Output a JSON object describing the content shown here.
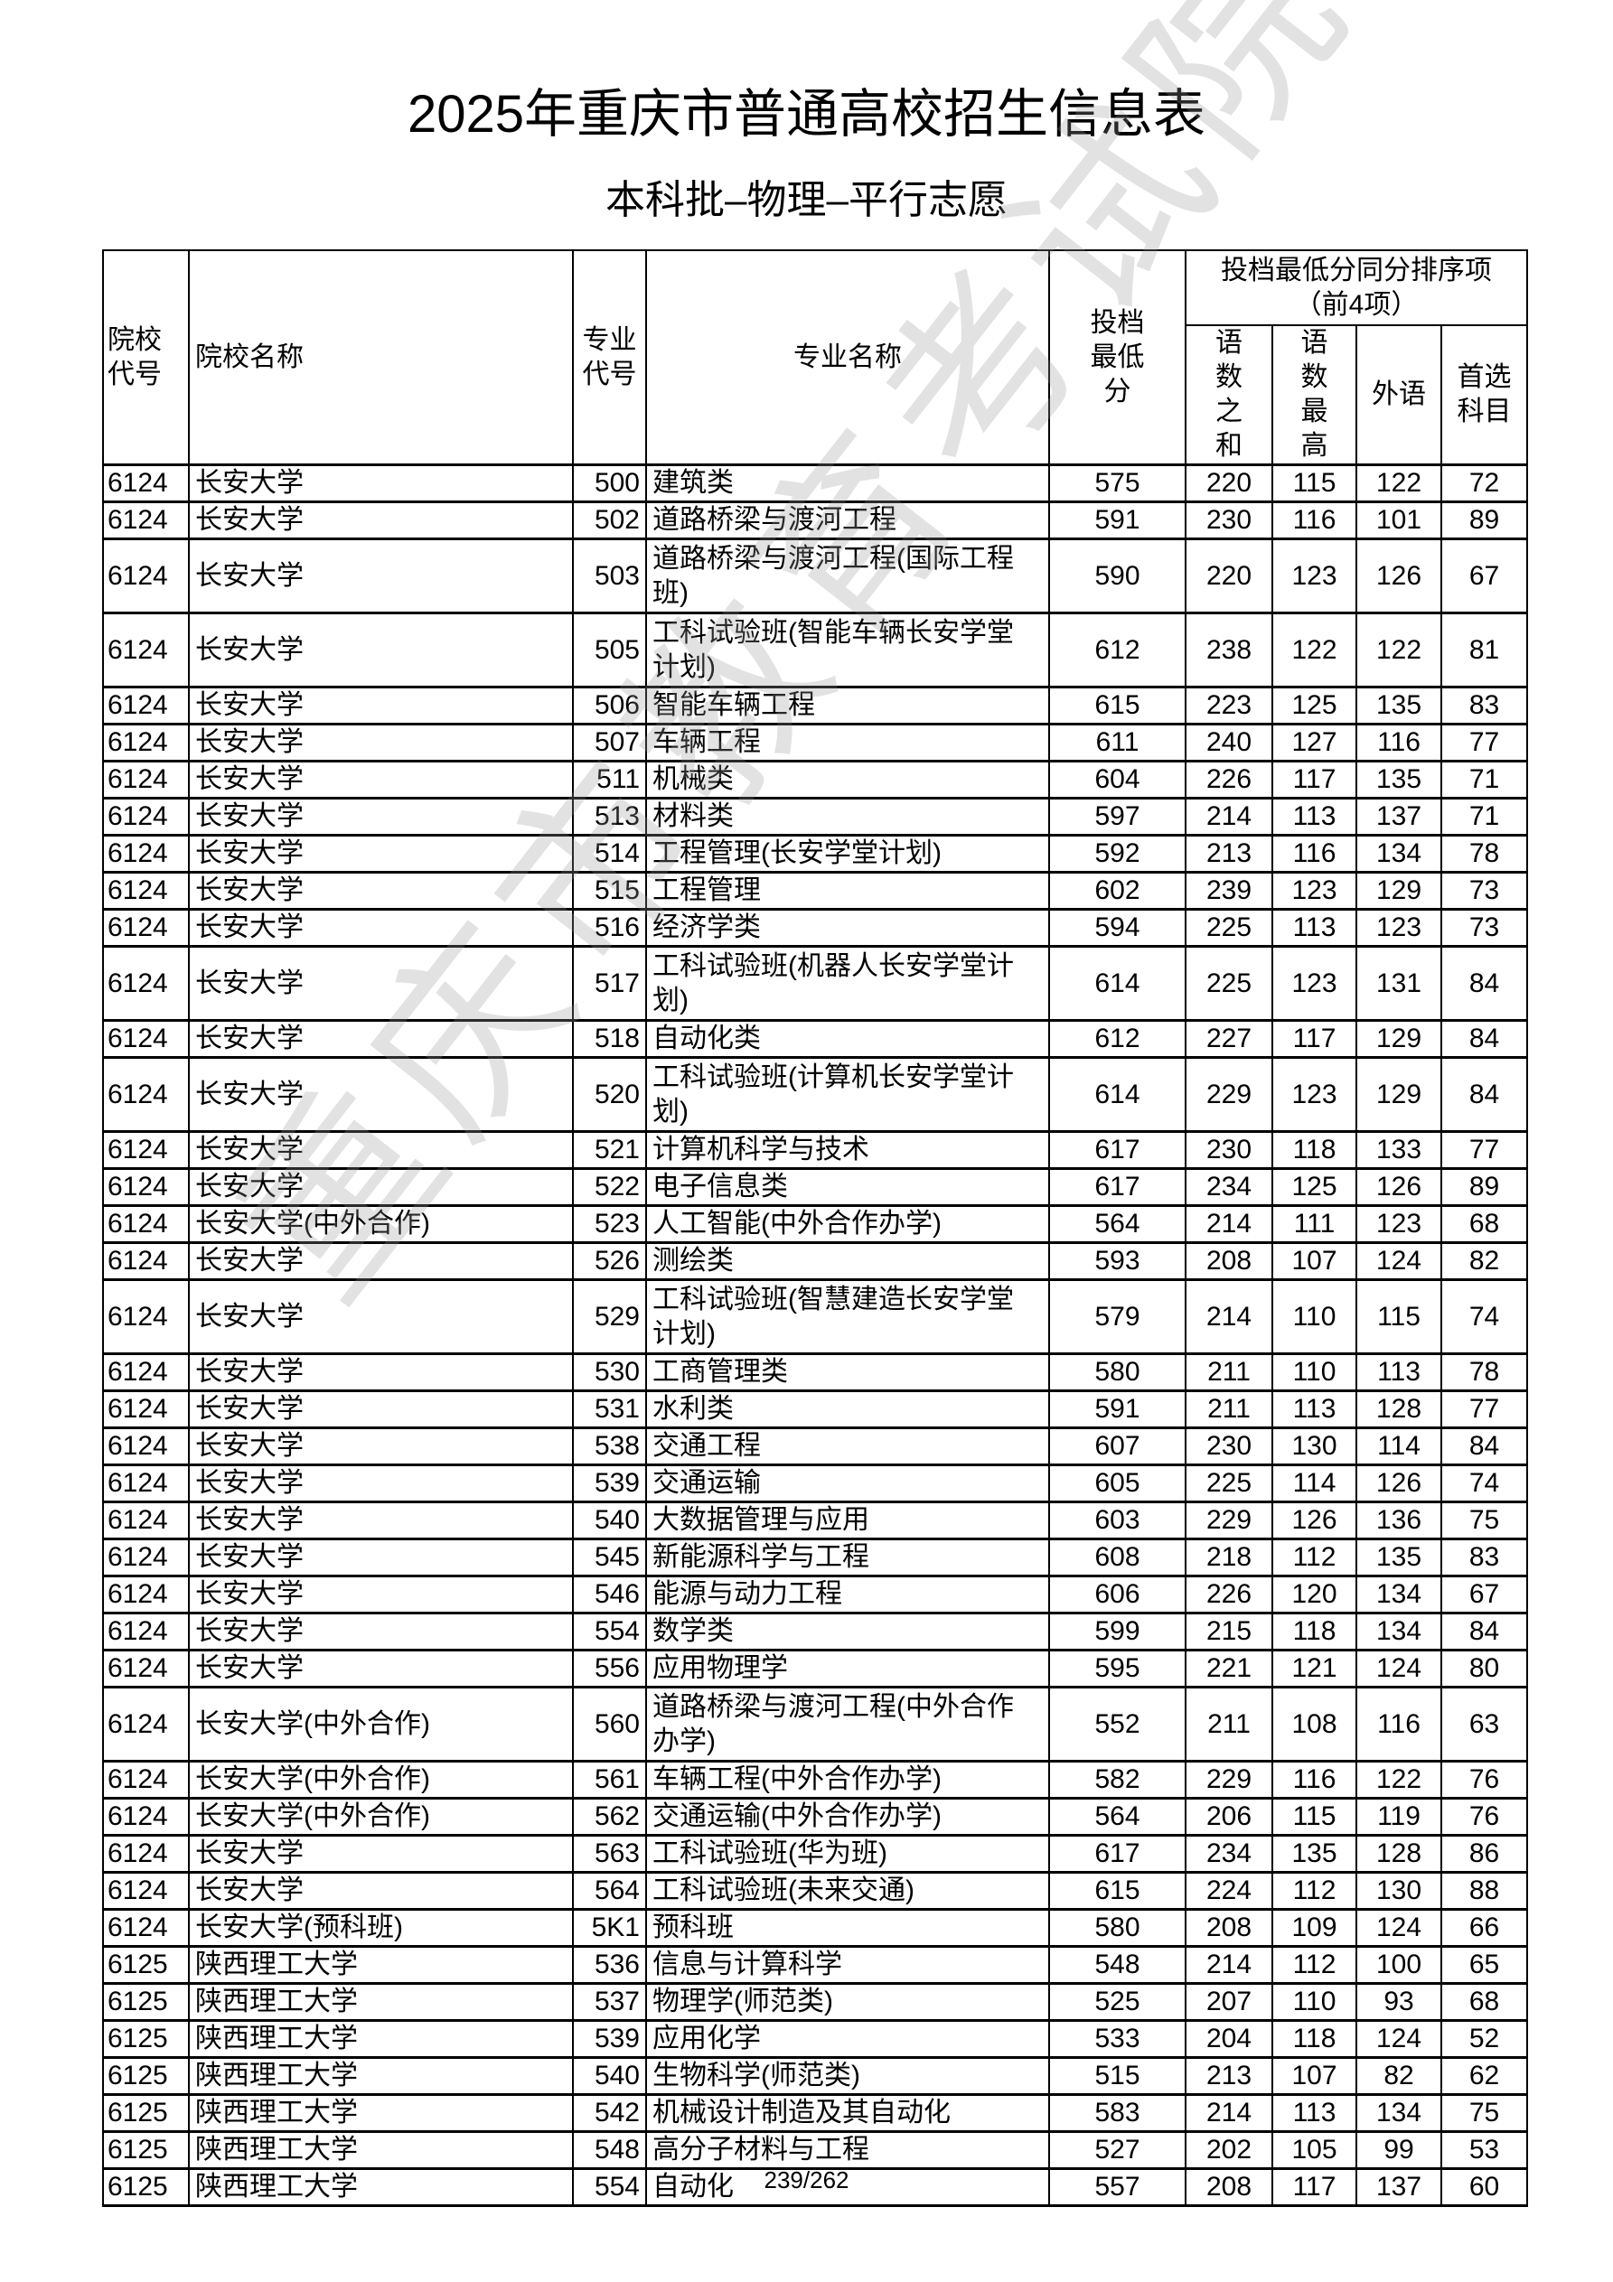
{
  "title": "2025年重庆市普通高校招生信息表",
  "subtitle": "本科批–物理–平行志愿",
  "watermark": "重庆市教育考试院",
  "headers": {
    "school_code": "院校代号",
    "school_name": "院校名称",
    "major_code": "专业代号",
    "major_name": "专业名称",
    "min_score": "投档最低分",
    "tiebreak_group": "投档最低分同分排序项（前4项）",
    "chinese_math_sum": "语数之和",
    "chinese_math_max": "语数最高",
    "foreign_lang": "外语",
    "first_subject": "首选科目"
  },
  "rows": [
    [
      "6124",
      "长安大学",
      "500",
      "建筑类",
      "575",
      "220",
      "115",
      "122",
      "72"
    ],
    [
      "6124",
      "长安大学",
      "502",
      "道路桥梁与渡河工程",
      "591",
      "230",
      "116",
      "101",
      "89"
    ],
    [
      "6124",
      "长安大学",
      "503",
      "道路桥梁与渡河工程(国际工程班)",
      "590",
      "220",
      "123",
      "126",
      "67"
    ],
    [
      "6124",
      "长安大学",
      "505",
      "工科试验班(智能车辆长安学堂计划)",
      "612",
      "238",
      "122",
      "122",
      "81"
    ],
    [
      "6124",
      "长安大学",
      "506",
      "智能车辆工程",
      "615",
      "223",
      "125",
      "135",
      "83"
    ],
    [
      "6124",
      "长安大学",
      "507",
      "车辆工程",
      "611",
      "240",
      "127",
      "116",
      "77"
    ],
    [
      "6124",
      "长安大学",
      "511",
      "机械类",
      "604",
      "226",
      "117",
      "135",
      "71"
    ],
    [
      "6124",
      "长安大学",
      "513",
      "材料类",
      "597",
      "214",
      "113",
      "137",
      "71"
    ],
    [
      "6124",
      "长安大学",
      "514",
      "工程管理(长安学堂计划)",
      "592",
      "213",
      "116",
      "134",
      "78"
    ],
    [
      "6124",
      "长安大学",
      "515",
      "工程管理",
      "602",
      "239",
      "123",
      "129",
      "73"
    ],
    [
      "6124",
      "长安大学",
      "516",
      "经济学类",
      "594",
      "225",
      "113",
      "123",
      "73"
    ],
    [
      "6124",
      "长安大学",
      "517",
      "工科试验班(机器人长安学堂计划)",
      "614",
      "225",
      "123",
      "131",
      "84"
    ],
    [
      "6124",
      "长安大学",
      "518",
      "自动化类",
      "612",
      "227",
      "117",
      "129",
      "84"
    ],
    [
      "6124",
      "长安大学",
      "520",
      "工科试验班(计算机长安学堂计划)",
      "614",
      "229",
      "123",
      "129",
      "84"
    ],
    [
      "6124",
      "长安大学",
      "521",
      "计算机科学与技术",
      "617",
      "230",
      "118",
      "133",
      "77"
    ],
    [
      "6124",
      "长安大学",
      "522",
      "电子信息类",
      "617",
      "234",
      "125",
      "126",
      "89"
    ],
    [
      "6124",
      "长安大学(中外合作)",
      "523",
      "人工智能(中外合作办学)",
      "564",
      "214",
      "111",
      "123",
      "68"
    ],
    [
      "6124",
      "长安大学",
      "526",
      "测绘类",
      "593",
      "208",
      "107",
      "124",
      "82"
    ],
    [
      "6124",
      "长安大学",
      "529",
      "工科试验班(智慧建造长安学堂计划)",
      "579",
      "214",
      "110",
      "115",
      "74"
    ],
    [
      "6124",
      "长安大学",
      "530",
      "工商管理类",
      "580",
      "211",
      "110",
      "113",
      "78"
    ],
    [
      "6124",
      "长安大学",
      "531",
      "水利类",
      "591",
      "211",
      "113",
      "128",
      "77"
    ],
    [
      "6124",
      "长安大学",
      "538",
      "交通工程",
      "607",
      "230",
      "130",
      "114",
      "84"
    ],
    [
      "6124",
      "长安大学",
      "539",
      "交通运输",
      "605",
      "225",
      "114",
      "126",
      "74"
    ],
    [
      "6124",
      "长安大学",
      "540",
      "大数据管理与应用",
      "603",
      "229",
      "126",
      "136",
      "75"
    ],
    [
      "6124",
      "长安大学",
      "545",
      "新能源科学与工程",
      "608",
      "218",
      "112",
      "135",
      "83"
    ],
    [
      "6124",
      "长安大学",
      "546",
      "能源与动力工程",
      "606",
      "226",
      "120",
      "134",
      "67"
    ],
    [
      "6124",
      "长安大学",
      "554",
      "数学类",
      "599",
      "215",
      "118",
      "134",
      "84"
    ],
    [
      "6124",
      "长安大学",
      "556",
      "应用物理学",
      "595",
      "221",
      "121",
      "124",
      "80"
    ],
    [
      "6124",
      "长安大学(中外合作)",
      "560",
      "道路桥梁与渡河工程(中外合作办学)",
      "552",
      "211",
      "108",
      "116",
      "63"
    ],
    [
      "6124",
      "长安大学(中外合作)",
      "561",
      "车辆工程(中外合作办学)",
      "582",
      "229",
      "116",
      "122",
      "76"
    ],
    [
      "6124",
      "长安大学(中外合作)",
      "562",
      "交通运输(中外合作办学)",
      "564",
      "206",
      "115",
      "119",
      "76"
    ],
    [
      "6124",
      "长安大学",
      "563",
      "工科试验班(华为班)",
      "617",
      "234",
      "135",
      "128",
      "86"
    ],
    [
      "6124",
      "长安大学",
      "564",
      "工科试验班(未来交通)",
      "615",
      "224",
      "112",
      "130",
      "88"
    ],
    [
      "6124",
      "长安大学(预科班)",
      "5K1",
      "预科班",
      "580",
      "208",
      "109",
      "124",
      "66"
    ],
    [
      "6125",
      "陕西理工大学",
      "536",
      "信息与计算科学",
      "548",
      "214",
      "112",
      "100",
      "65"
    ],
    [
      "6125",
      "陕西理工大学",
      "537",
      "物理学(师范类)",
      "525",
      "207",
      "110",
      "93",
      "68"
    ],
    [
      "6125",
      "陕西理工大学",
      "539",
      "应用化学",
      "533",
      "204",
      "118",
      "124",
      "52"
    ],
    [
      "6125",
      "陕西理工大学",
      "540",
      "生物科学(师范类)",
      "515",
      "213",
      "107",
      "82",
      "62"
    ],
    [
      "6125",
      "陕西理工大学",
      "542",
      "机械设计制造及其自动化",
      "583",
      "214",
      "113",
      "134",
      "75"
    ],
    [
      "6125",
      "陕西理工大学",
      "548",
      "高分子材料与工程",
      "527",
      "202",
      "105",
      "99",
      "53"
    ],
    [
      "6125",
      "陕西理工大学",
      "554",
      "自动化",
      "557",
      "208",
      "117",
      "137",
      "60"
    ]
  ],
  "page_number": "239/262"
}
